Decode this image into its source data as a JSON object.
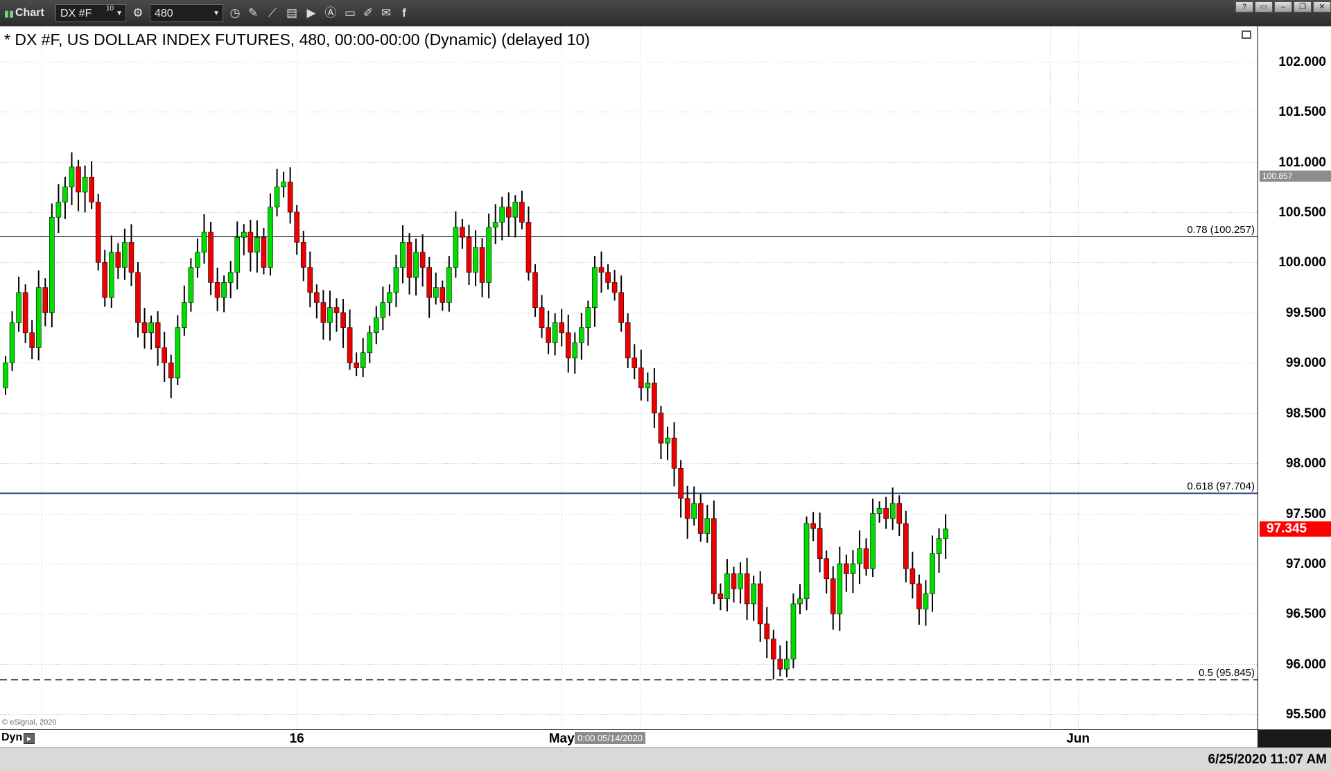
{
  "toolbar": {
    "app_label": "Chart",
    "symbol": "DX #F",
    "symbol_badge": "10",
    "interval": "480",
    "icons": [
      "chart-app-icon",
      "clock-icon",
      "pencil-icon",
      "line-tool-icon",
      "indicator-icon",
      "play-icon",
      "text-tool-icon",
      "comment-icon",
      "draw-icon",
      "twitter-icon",
      "facebook-icon"
    ]
  },
  "window_controls": [
    "help-icon",
    "restore-icon",
    "minimize-icon",
    "maximize-icon",
    "close-icon"
  ],
  "chart": {
    "title": "* DX #F, US DOLLAR INDEX FUTURES, 480, 00:00-00:00 (Dynamic) (delayed 10)",
    "copyright": "© eSignal, 2020",
    "last_price": "97.345",
    "ref_price": "100.857",
    "crosshair_time": "0:00 05/14/2020",
    "dyn_label": "Dyn",
    "timestamp": "6/25/2020 11:07 AM"
  },
  "chart_data": {
    "type": "candlestick",
    "title": "* DX #F, US DOLLAR INDEX FUTURES, 480, 00:00-00:00 (Dynamic) (delayed 10)",
    "ylim": [
      95.35,
      102.35
    ],
    "yticks": [
      "102.000",
      "101.500",
      "101.000",
      "100.500",
      "100.000",
      "99.500",
      "99.000",
      "98.500",
      "98.000",
      "97.500",
      "97.000",
      "96.500",
      "96.000",
      "95.500"
    ],
    "xticks": [
      {
        "label": "16",
        "index": 44
      },
      {
        "label": "May",
        "index": 84
      },
      {
        "label": "Jun",
        "index": 162
      },
      {
        "label": "16",
        "index": 202
      }
    ],
    "fib_levels": [
      {
        "label": "0.78 (100.257)",
        "value": 100.257,
        "style": "solid",
        "color": "#000000"
      },
      {
        "label": "0.618 (97.704)",
        "value": 97.704,
        "style": "solid",
        "color": "#1f3a7a"
      },
      {
        "label": "0.5 (95.845)",
        "value": 95.845,
        "style": "dashed",
        "color": "#000000"
      }
    ],
    "colors": {
      "up": "#00dd00",
      "down": "#ee0000",
      "wick": "#000000"
    },
    "closes": [
      99.0,
      99.4,
      99.7,
      99.3,
      99.15,
      99.75,
      99.5,
      100.45,
      100.6,
      100.75,
      100.95,
      100.7,
      100.85,
      100.6,
      100.0,
      99.65,
      100.1,
      99.95,
      100.2,
      99.9,
      99.4,
      99.3,
      99.4,
      99.15,
      99.0,
      98.85,
      99.35,
      99.6,
      99.95,
      100.1,
      100.3,
      99.8,
      99.65,
      99.8,
      99.9,
      100.25,
      100.3,
      100.1,
      100.25,
      99.95,
      100.55,
      100.75,
      100.8,
      100.5,
      100.2,
      99.95,
      99.7,
      99.6,
      99.4,
      99.55,
      99.5,
      99.35,
      99.0,
      98.95,
      99.1,
      99.3,
      99.45,
      99.6,
      99.7,
      99.95,
      100.2,
      99.85,
      100.1,
      99.95,
      99.65,
      99.75,
      99.6,
      99.95,
      100.35,
      100.25,
      99.9,
      100.15,
      99.8,
      100.35,
      100.4,
      100.55,
      100.45,
      100.6,
      100.4,
      99.9,
      99.55,
      99.35,
      99.2,
      99.4,
      99.3,
      99.05,
      99.2,
      99.35,
      99.55,
      99.95,
      99.9,
      99.8,
      99.7,
      99.4,
      99.05,
      98.95,
      98.75,
      98.8,
      98.5,
      98.2,
      98.25,
      97.95,
      97.65,
      97.45,
      97.6,
      97.3,
      97.45,
      96.7,
      96.65,
      96.9,
      96.75,
      96.9,
      96.6,
      96.8,
      96.4,
      96.25,
      96.05,
      95.95,
      96.05,
      96.6,
      96.65,
      97.4,
      97.35,
      97.05,
      96.85,
      96.5,
      97.0,
      96.9,
      97.0,
      97.15,
      96.95,
      97.5,
      97.55,
      97.45,
      97.6,
      97.4,
      96.95,
      96.8,
      96.55,
      96.7,
      97.1,
      97.25,
      97.345
    ]
  }
}
